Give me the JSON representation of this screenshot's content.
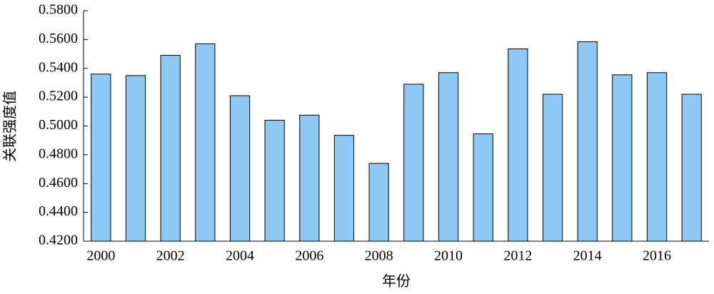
{
  "chart_data": {
    "type": "bar",
    "x_label": "年份",
    "y_label": "关联强度值",
    "categories": [
      "2000",
      null,
      "2002",
      null,
      "2004",
      null,
      "2006",
      null,
      "2008",
      null,
      "2010",
      null,
      "2012",
      null,
      "2014",
      null,
      "2016",
      null
    ],
    "values": [
      0.536,
      0.535,
      0.549,
      0.557,
      0.521,
      0.504,
      0.5075,
      0.4935,
      0.474,
      0.529,
      0.537,
      0.4945,
      0.5535,
      0.522,
      0.5585,
      0.5355,
      0.537,
      0.522
    ],
    "color": "#8ec8f5",
    "ylim": [
      0.42,
      0.58
    ],
    "yticks": [
      {
        "value": 0.42,
        "label": "0.4200"
      },
      {
        "value": 0.44,
        "label": "0.4400"
      },
      {
        "value": 0.46,
        "label": "0.4600"
      },
      {
        "value": 0.48,
        "label": "0.4800"
      },
      {
        "value": 0.5,
        "label": "0.5000"
      },
      {
        "value": 0.52,
        "label": "0.5200"
      },
      {
        "value": 0.54,
        "label": "0.5400"
      },
      {
        "value": 0.56,
        "label": "0.5600"
      },
      {
        "value": 0.58,
        "label": "0.5800"
      }
    ],
    "grid": false
  }
}
